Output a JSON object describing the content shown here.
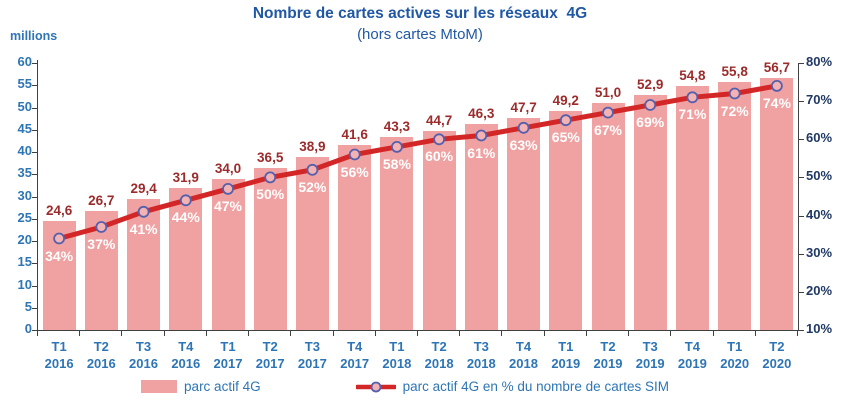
{
  "chart_data": {
    "type": "bar+line",
    "title": "Nombre de cartes actives sur les réseaux  4G",
    "subtitle": "(hors cartes MtoM)",
    "categories": [
      {
        "quarter": "T1",
        "year": "2016"
      },
      {
        "quarter": "T2",
        "year": "2016"
      },
      {
        "quarter": "T3",
        "year": "2016"
      },
      {
        "quarter": "T4",
        "year": "2016"
      },
      {
        "quarter": "T1",
        "year": "2017"
      },
      {
        "quarter": "T2",
        "year": "2017"
      },
      {
        "quarter": "T3",
        "year": "2017"
      },
      {
        "quarter": "T4",
        "year": "2017"
      },
      {
        "quarter": "T1",
        "year": "2018"
      },
      {
        "quarter": "T2",
        "year": "2018"
      },
      {
        "quarter": "T3",
        "year": "2018"
      },
      {
        "quarter": "T4",
        "year": "2018"
      },
      {
        "quarter": "T1",
        "year": "2019"
      },
      {
        "quarter": "T2",
        "year": "2019"
      },
      {
        "quarter": "T3",
        "year": "2019"
      },
      {
        "quarter": "T4",
        "year": "2019"
      },
      {
        "quarter": "T1",
        "year": "2020"
      },
      {
        "quarter": "T2",
        "year": "2020"
      }
    ],
    "series": [
      {
        "name": "parc actif 4G",
        "type": "bar",
        "axis": "left",
        "values": [
          24.6,
          26.7,
          29.4,
          31.9,
          34.0,
          36.5,
          38.9,
          41.6,
          43.3,
          44.7,
          46.3,
          47.7,
          49.2,
          51.0,
          52.9,
          54.8,
          55.8,
          56.7
        ],
        "labels": [
          "24,6",
          "26,7",
          "29,4",
          "31,9",
          "34,0",
          "36,5",
          "38,9",
          "41,6",
          "43,3",
          "44,7",
          "46,3",
          "47,7",
          "49,2",
          "51,0",
          "52,9",
          "54,8",
          "55,8",
          "56,7"
        ]
      },
      {
        "name": "parc actif 4G en % du nombre de cartes SIM",
        "type": "line",
        "axis": "right",
        "values": [
          34,
          37,
          41,
          44,
          47,
          50,
          52,
          56,
          58,
          60,
          61,
          63,
          65,
          67,
          69,
          71,
          72,
          74
        ],
        "labels": [
          "34%",
          "37%",
          "41%",
          "44%",
          "47%",
          "50%",
          "52%",
          "56%",
          "58%",
          "60%",
          "61%",
          "63%",
          "65%",
          "67%",
          "69%",
          "71%",
          "72%",
          "74%"
        ]
      }
    ],
    "left_axis": {
      "label": "millions",
      "min": 0,
      "max": 60,
      "step": 5,
      "tick_labels": [
        "60",
        "55",
        "50",
        "45",
        "40",
        "35",
        "30",
        "25",
        "20",
        "15",
        "10",
        "5",
        "0"
      ]
    },
    "right_axis": {
      "min": 10,
      "max": 80,
      "step": 10,
      "format": "percent",
      "tick_labels": [
        "80%",
        "70%",
        "60%",
        "50%",
        "40%",
        "30%",
        "20%",
        "10%"
      ]
    },
    "grid": false,
    "legend_position": "bottom"
  },
  "colors": {
    "title": "#2158A5",
    "axis_left_labels": "#2E75B6",
    "axis_right_labels": "#1F3864",
    "bar_fill": "#F0A2A2",
    "bar_value_label": "#9C2B2B",
    "pct_label": "#FFFFFF",
    "line": "#D32727",
    "marker_fill": "#F3B3B4",
    "marker_stroke": "#5560AC",
    "axis_line": "#404040",
    "legend_text": "#2E75B6"
  }
}
